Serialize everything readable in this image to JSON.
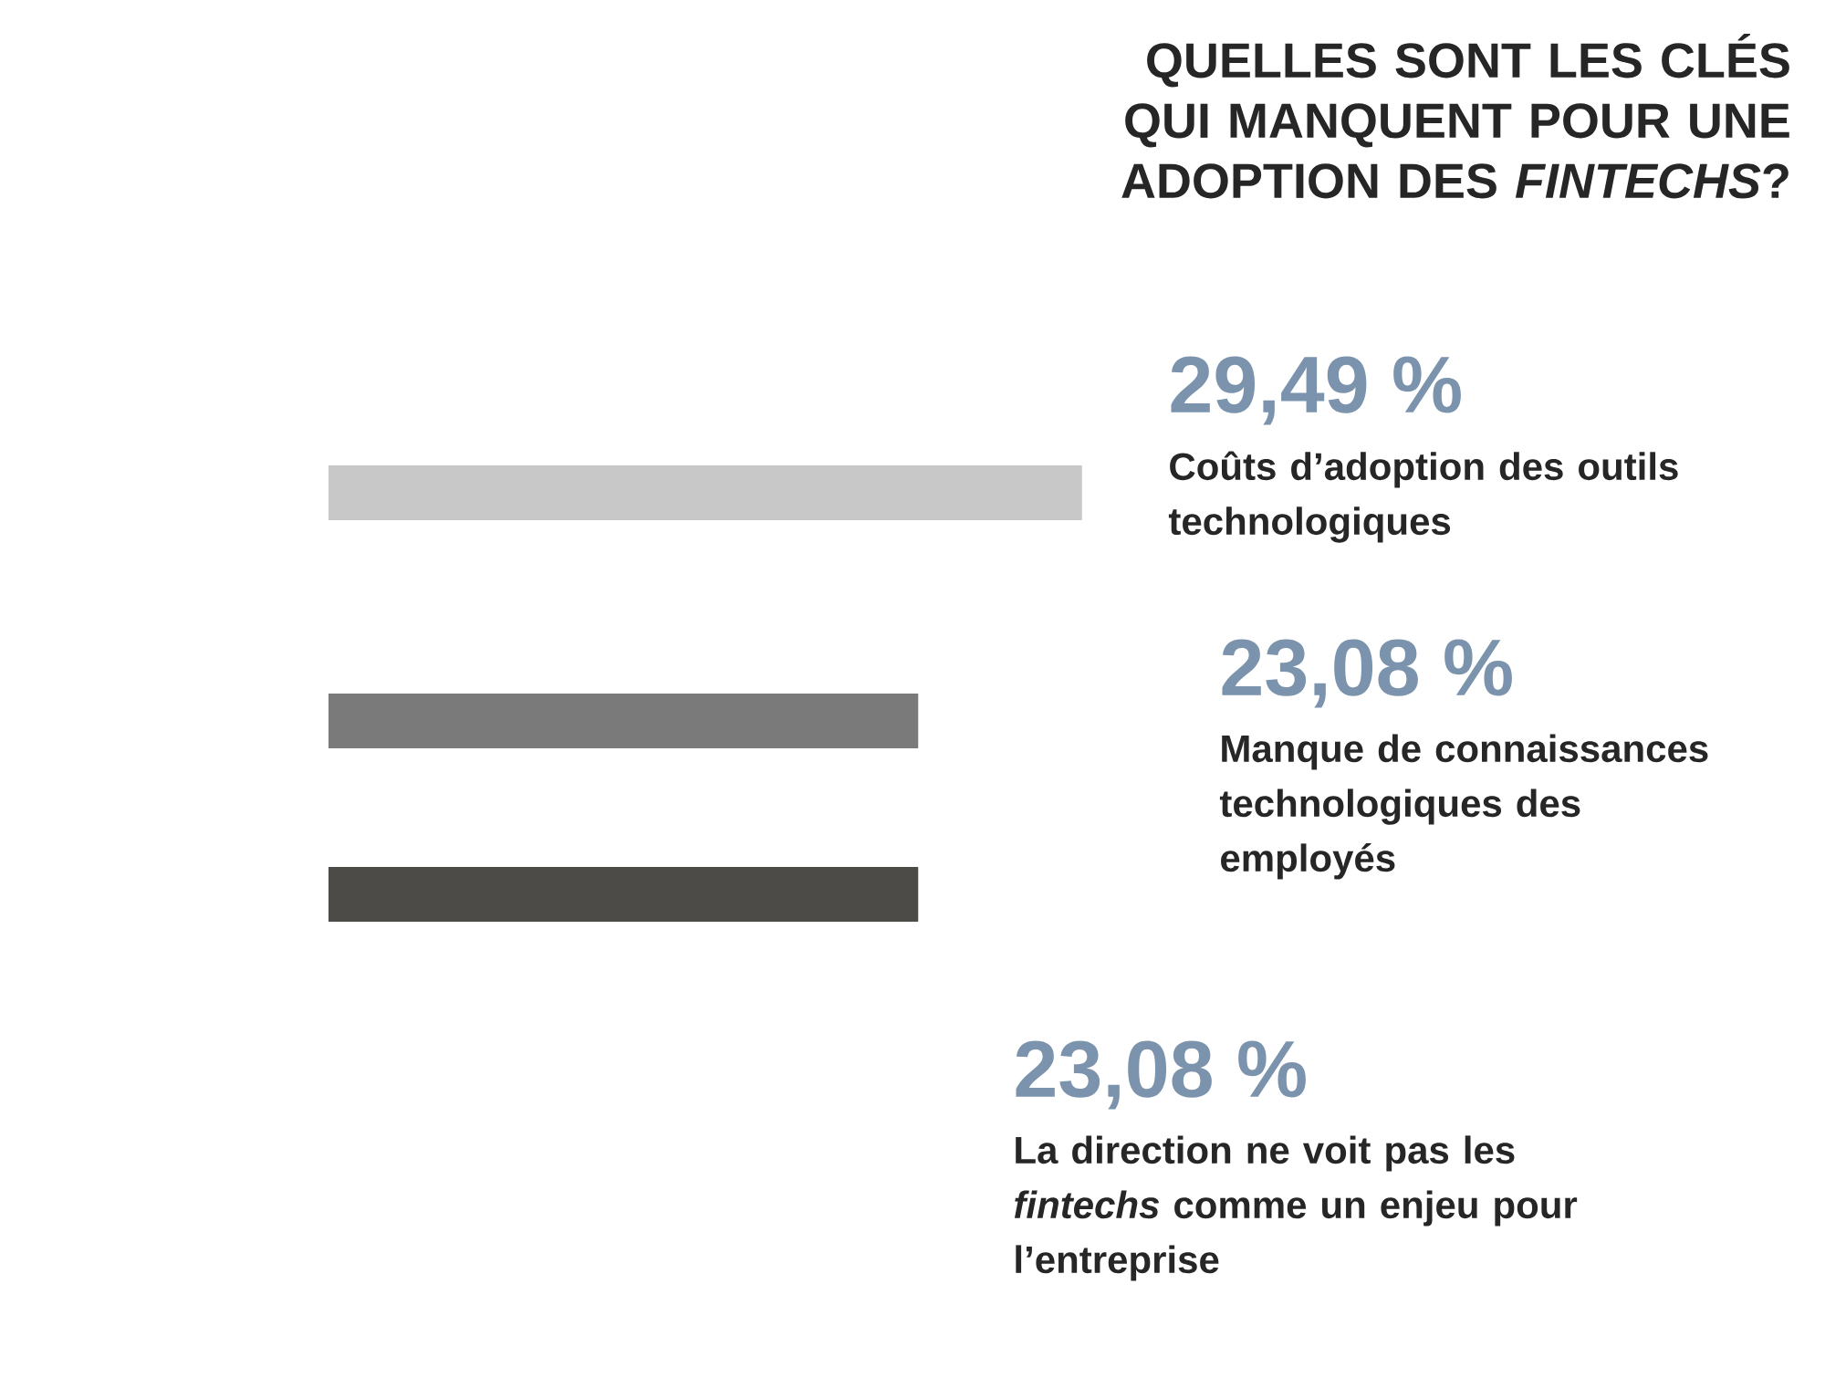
{
  "chart_data": {
    "type": "other",
    "title": "QUELLES SONT LES CLÉS QUI MANQUENT POUR UNE ADOPTION DES *FINTECHS*?",
    "categories": [
      "Coûts d’adoption des outils technologiques",
      "Manque de connaissances technologiques des employés",
      "La direction ne voit pas les *fintechs* comme un enjeu pour l’entreprise"
    ],
    "values": [
      29.49,
      23.08,
      23.08
    ],
    "value_labels": [
      "29,49 %",
      "23,08 %",
      "23,08 %"
    ],
    "colors": [
      "#c8c8c8",
      "#7a7a7a",
      "#4d4b48"
    ]
  }
}
